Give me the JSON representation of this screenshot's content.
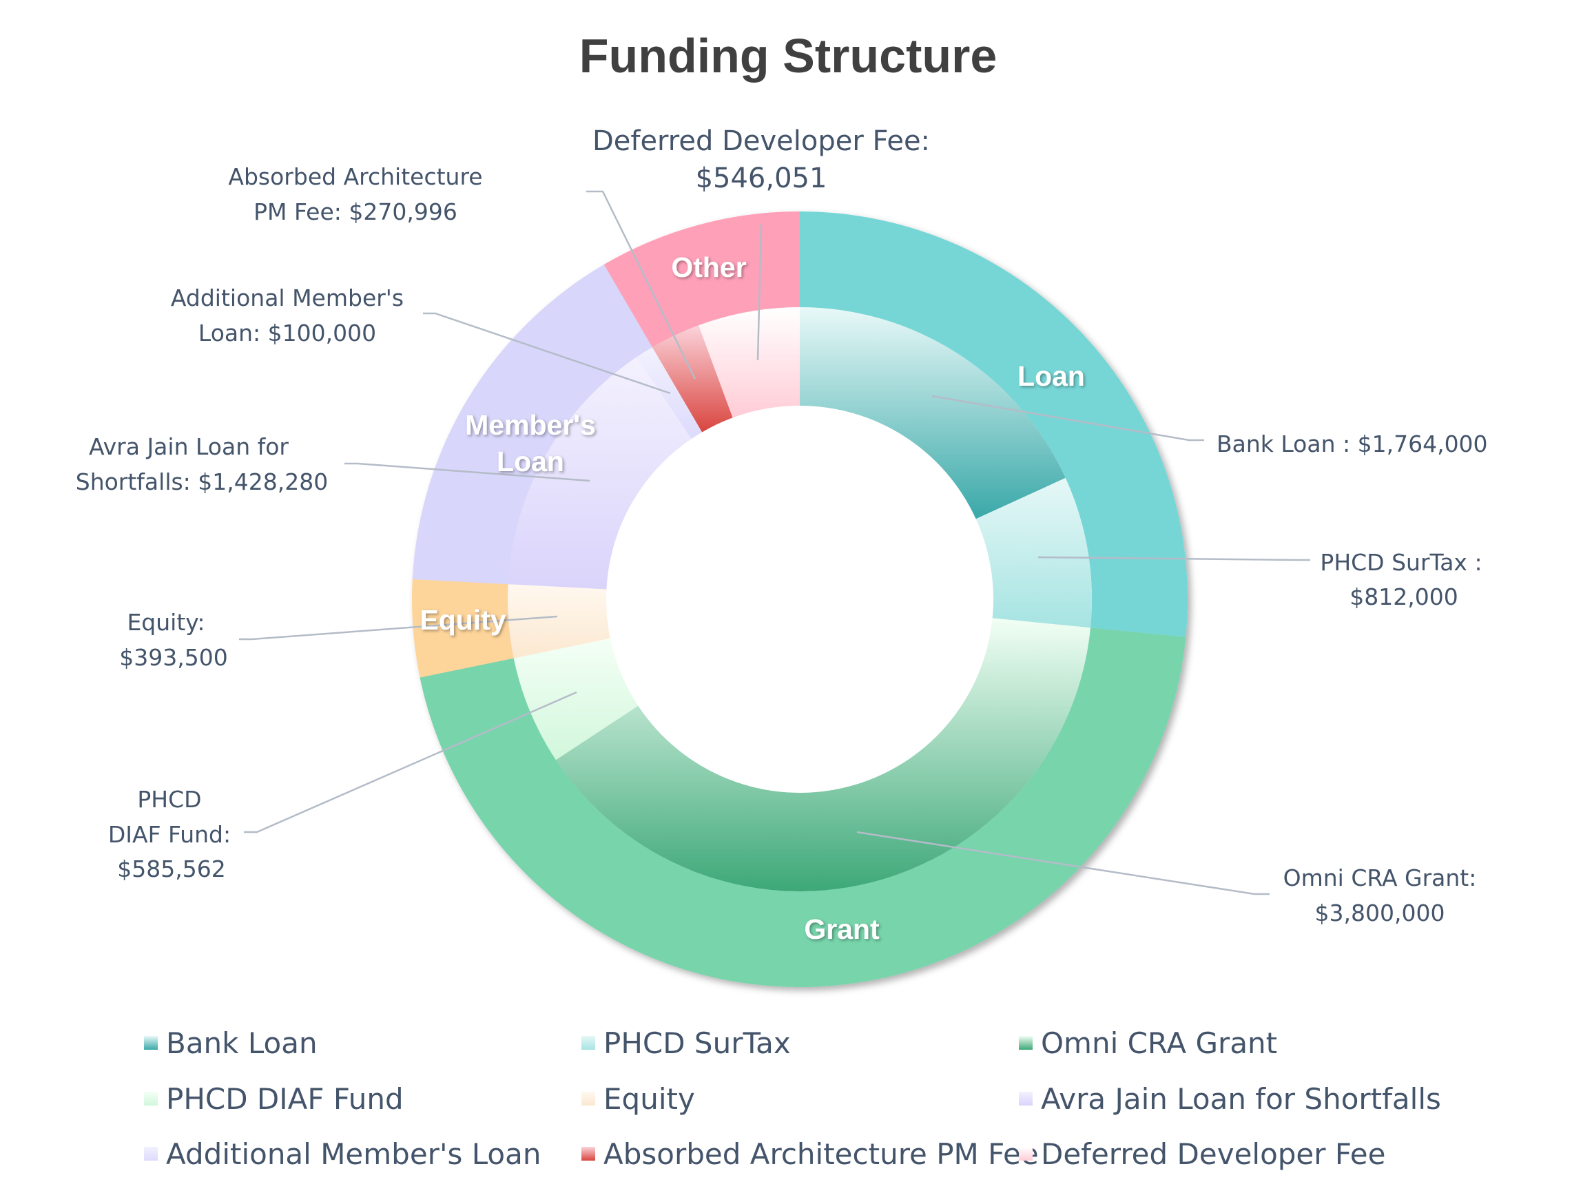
{
  "chart_data": {
    "type": "pie",
    "subtype": "doughnut-nested",
    "title": "Funding Structure",
    "legend_position": "bottom",
    "outer_ring": [
      {
        "name": "Loan",
        "value": 2576000,
        "color": "#76D6D6"
      },
      {
        "name": "Grant",
        "value": 4385562,
        "color": "#77D4AB"
      },
      {
        "name": "Equity",
        "value": 393500,
        "color": "#FDD49A"
      },
      {
        "name": "Member's Loan",
        "name_lines": [
          "Member's",
          "Loan"
        ],
        "value": 1528280,
        "color": "#D8D6FA"
      },
      {
        "name": "Other",
        "value": 817047,
        "color": "#FFA0B9"
      }
    ],
    "inner_ring": [
      {
        "name": "Bank Loan",
        "value": 1764000,
        "label_lines": [
          "Bank Loan : $1,764,000"
        ],
        "color_light": "#E8F9F8",
        "color_dark": "#3AA8A8"
      },
      {
        "name": "PHCD SurTax",
        "value": 812000,
        "label_lines": [
          "PHCD SurTax :",
          "$812,000"
        ],
        "color_light": "#E6F8F7",
        "color_dark": "#A6E4E2"
      },
      {
        "name": "Omni CRA Grant",
        "value": 3800000,
        "label_lines": [
          "Omni CRA Grant:",
          "$3,800,000"
        ],
        "color_light": "#F2FFF5",
        "color_dark": "#3DA878"
      },
      {
        "name": "PHCD DIAF Fund",
        "value": 585562,
        "label_lines": [
          "PHCD",
          "DIAF Fund:",
          "$585,562"
        ],
        "color_light": "#F4FFF6",
        "color_dark": "#D2F7DC"
      },
      {
        "name": "Equity",
        "value": 393500,
        "label_lines": [
          "Equity:",
          "$393,500"
        ],
        "color_light": "#FFF8EF",
        "color_dark": "#FBE8D0"
      },
      {
        "name": "Avra Jain Loan for Shortfalls",
        "value": 1428280,
        "label_lines": [
          "Avra Jain Loan for",
          "Shortfalls:  $1,428,280"
        ],
        "color_light": "#F4F1FE",
        "color_dark": "#DAD4FB"
      },
      {
        "name": "Additional Member's Loan",
        "value": 100000,
        "label_lines": [
          "Additional Member's",
          "Loan:  $100,000"
        ],
        "color_light": "#F2F1FE",
        "color_dark": "#DDDBFB"
      },
      {
        "name": "Absorbed Architecture PM Fee",
        "value": 270996,
        "label_lines": [
          "Absorbed Architecture",
          "PM Fee:  $270,996"
        ],
        "color_light": "#FBD3DA",
        "color_dark": "#D9453F"
      },
      {
        "name": "Deferred Developer Fee",
        "value": 546051,
        "label_lines": [
          "Deferred Developer Fee:",
          "$546,051"
        ],
        "color_light": "#FFFFFF",
        "color_dark": "#FFCCD6"
      }
    ]
  }
}
